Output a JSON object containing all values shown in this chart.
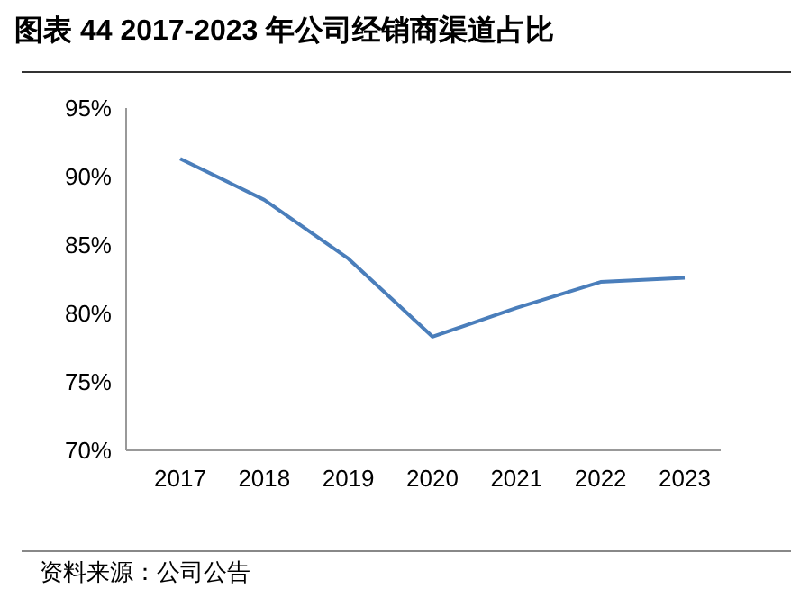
{
  "chart_data": {
    "type": "line",
    "title": "图表 44 2017-2023 年公司经销商渠道占比",
    "categories": [
      "2017",
      "2018",
      "2019",
      "2020",
      "2021",
      "2022",
      "2023"
    ],
    "series": [
      {
        "color": "#4a7ebb",
        "values": [
          91.3,
          88.3,
          84.0,
          78.3,
          80.4,
          82.3,
          82.6
        ]
      }
    ],
    "ylim": [
      70,
      95
    ],
    "yticks": [
      {
        "value": 70,
        "label": "70%"
      },
      {
        "value": 75,
        "label": "75%"
      },
      {
        "value": 80,
        "label": "80%"
      },
      {
        "value": 85,
        "label": "85%"
      },
      {
        "value": 90,
        "label": "90%"
      },
      {
        "value": 95,
        "label": "95%"
      }
    ],
    "annotations": [
      "资料来源：公司公告"
    ]
  }
}
